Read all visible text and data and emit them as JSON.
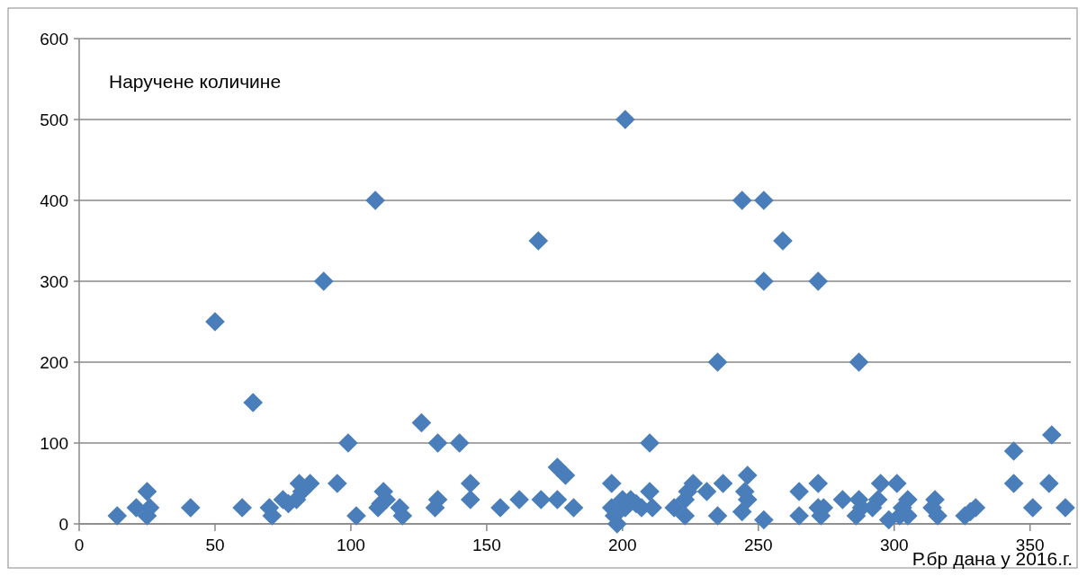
{
  "chart_data": {
    "type": "scatter",
    "title": "Наручене количине",
    "xlabel": "Р.бр дана у 2016.г.",
    "xlim": [
      0,
      365
    ],
    "xticks": [
      0,
      50,
      100,
      150,
      200,
      250,
      300,
      350
    ],
    "ylim": [
      0,
      600
    ],
    "yticks": [
      0,
      100,
      200,
      300,
      400,
      500,
      600
    ],
    "grid": "y",
    "marker": "diamond",
    "series": [
      {
        "color": "#4a7ebb",
        "x": [
          14,
          21,
          25,
          25,
          26,
          41,
          50,
          60,
          64,
          70,
          71,
          75,
          77,
          80,
          81,
          82,
          85,
          90,
          95,
          99,
          102,
          109,
          110,
          111,
          112,
          113,
          118,
          119,
          126,
          131,
          132,
          132,
          140,
          144,
          144,
          155,
          162,
          169,
          170,
          176,
          176,
          179,
          182,
          196,
          196,
          197,
          198,
          200,
          201,
          201,
          203,
          205,
          207,
          210,
          210,
          211,
          219,
          223,
          223,
          224,
          226,
          231,
          235,
          235,
          237,
          244,
          244,
          245,
          246,
          246,
          252,
          252,
          252,
          259,
          265,
          265,
          272,
          272,
          272,
          273,
          274,
          281,
          286,
          287,
          287,
          288,
          292,
          294,
          295,
          298,
          301,
          302,
          303,
          305,
          305,
          314,
          315,
          316,
          326,
          328,
          330,
          344,
          344,
          351,
          357,
          358,
          363
        ],
        "values": [
          10,
          20,
          40,
          10,
          20,
          20,
          250,
          20,
          150,
          20,
          10,
          30,
          25,
          30,
          50,
          40,
          50,
          300,
          50,
          100,
          10,
          400,
          20,
          25,
          40,
          30,
          20,
          10,
          125,
          20,
          100,
          30,
          100,
          50,
          30,
          20,
          30,
          350,
          30,
          30,
          70,
          60,
          20,
          50,
          20,
          10,
          0,
          30,
          500,
          20,
          30,
          25,
          20,
          100,
          40,
          20,
          20,
          10,
          30,
          40,
          50,
          40,
          200,
          10,
          50,
          400,
          15,
          40,
          60,
          30,
          400,
          5,
          300,
          350,
          40,
          10,
          300,
          50,
          20,
          10,
          20,
          30,
          10,
          30,
          200,
          20,
          20,
          30,
          50,
          5,
          50,
          10,
          20,
          30,
          10,
          20,
          30,
          10,
          10,
          15,
          20,
          90,
          50,
          20,
          50,
          110,
          20
        ]
      }
    ]
  }
}
